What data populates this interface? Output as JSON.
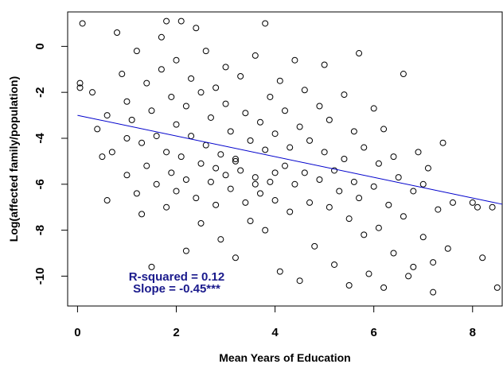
{
  "chart_data": {
    "type": "scatter",
    "x_label": "Mean Years of Education",
    "y_label": "Log(affected family/population)",
    "annotations": [
      "R-squared = 0.12",
      "Slope = -0.45***"
    ],
    "xlim": [
      -0.2,
      8.6
    ],
    "ylim": [
      -11.3,
      1.5
    ],
    "xticks": [
      0,
      2,
      4,
      6,
      8
    ],
    "yticks": [
      0,
      -2,
      -4,
      -6,
      -8,
      -10
    ],
    "series": [
      {
        "color": "#000000",
        "x": [
          0.1,
          0.05,
          0.05,
          0.3,
          0.4,
          0.5,
          0.6,
          0.7,
          0.8,
          0.9,
          1.0,
          1.0,
          1.1,
          1.2,
          1.2,
          1.3,
          1.3,
          1.4,
          1.4,
          1.5,
          1.5,
          1.6,
          1.6,
          1.7,
          1.7,
          1.8,
          1.8,
          1.8,
          1.9,
          1.9,
          2.0,
          2.0,
          2.0,
          2.1,
          2.1,
          2.2,
          2.2,
          2.2,
          2.3,
          2.3,
          2.4,
          2.4,
          2.5,
          2.5,
          2.5,
          2.6,
          2.6,
          2.7,
          2.7,
          2.8,
          2.8,
          2.9,
          2.9,
          3.0,
          3.0,
          3.0,
          3.1,
          3.1,
          3.2,
          3.2,
          3.3,
          3.3,
          3.4,
          3.4,
          3.5,
          3.5,
          3.6,
          3.6,
          3.7,
          3.7,
          3.8,
          3.8,
          3.8,
          3.9,
          3.9,
          4.0,
          4.0,
          4.1,
          4.1,
          4.2,
          4.2,
          4.3,
          4.3,
          4.4,
          4.4,
          4.5,
          4.5,
          4.6,
          4.6,
          4.7,
          4.7,
          4.8,
          4.9,
          4.9,
          5.0,
          5.0,
          5.1,
          5.1,
          5.2,
          5.2,
          5.3,
          5.4,
          5.4,
          5.5,
          5.5,
          5.6,
          5.6,
          5.7,
          5.7,
          5.8,
          5.8,
          5.9,
          6.0,
          6.0,
          6.1,
          6.1,
          6.2,
          6.2,
          6.3,
          6.4,
          6.4,
          6.5,
          6.6,
          6.6,
          6.7,
          6.8,
          6.8,
          6.9,
          7.0,
          7.0,
          7.1,
          7.2,
          7.2,
          7.3,
          7.4,
          7.5,
          7.6,
          8.0,
          8.1,
          8.2,
          8.4,
          8.5,
          0.6,
          1.0,
          2.8,
          3.2,
          3.6,
          4.0
        ],
        "values": [
          1.0,
          -1.6,
          -1.8,
          -2.0,
          -3.6,
          -4.8,
          -6.7,
          -4.6,
          0.6,
          -1.2,
          -2.4,
          -5.6,
          -3.2,
          -6.4,
          -0.2,
          -4.2,
          -7.3,
          -1.6,
          -5.2,
          -2.8,
          -9.6,
          -3.9,
          -6.0,
          0.4,
          -1.0,
          -4.6,
          -7.0,
          1.1,
          -2.2,
          -5.5,
          -3.4,
          -0.6,
          -6.3,
          1.1,
          -4.8,
          -2.6,
          -5.8,
          -8.9,
          -1.4,
          -3.9,
          -6.6,
          0.8,
          -5.1,
          -2.0,
          -7.7,
          -4.3,
          -0.2,
          -5.9,
          -3.1,
          -1.8,
          -6.9,
          -4.7,
          -8.4,
          -2.5,
          -5.6,
          -0.9,
          -6.2,
          -3.7,
          -4.9,
          -9.2,
          -1.3,
          -5.4,
          -6.8,
          -2.9,
          -4.1,
          -7.6,
          -0.4,
          -5.7,
          -3.3,
          -6.4,
          1.0,
          -4.5,
          -8.0,
          -2.2,
          -5.9,
          -3.8,
          -6.7,
          -1.5,
          -9.8,
          -5.2,
          -2.8,
          -7.2,
          -4.4,
          -0.6,
          -6.0,
          -3.5,
          -10.2,
          -5.5,
          -1.9,
          -6.8,
          -4.1,
          -8.7,
          -2.6,
          -5.8,
          -4.6,
          -0.8,
          -7.0,
          -3.2,
          -9.5,
          -5.4,
          -6.3,
          -2.1,
          -4.9,
          -10.4,
          -7.5,
          -5.9,
          -3.7,
          -0.3,
          -6.6,
          -8.2,
          -4.4,
          -9.9,
          -6.1,
          -2.7,
          -7.9,
          -5.1,
          -10.5,
          -3.6,
          -6.9,
          -9.0,
          -4.8,
          -5.7,
          -7.4,
          -1.2,
          -10.0,
          -6.3,
          -9.6,
          -4.6,
          -8.3,
          -6.0,
          -5.3,
          -9.4,
          -10.7,
          -7.1,
          -4.2,
          -8.8,
          -6.8,
          -6.8,
          -7.0,
          -9.2,
          -7.0,
          -10.5,
          -3.0,
          -4.0,
          -5.3,
          -5.0,
          -6.0,
          -5.5
        ]
      }
    ],
    "trend_line": {
      "color": "#0000cc",
      "x": [
        0,
        8.6
      ],
      "y": [
        -3.0,
        -6.87
      ]
    }
  }
}
